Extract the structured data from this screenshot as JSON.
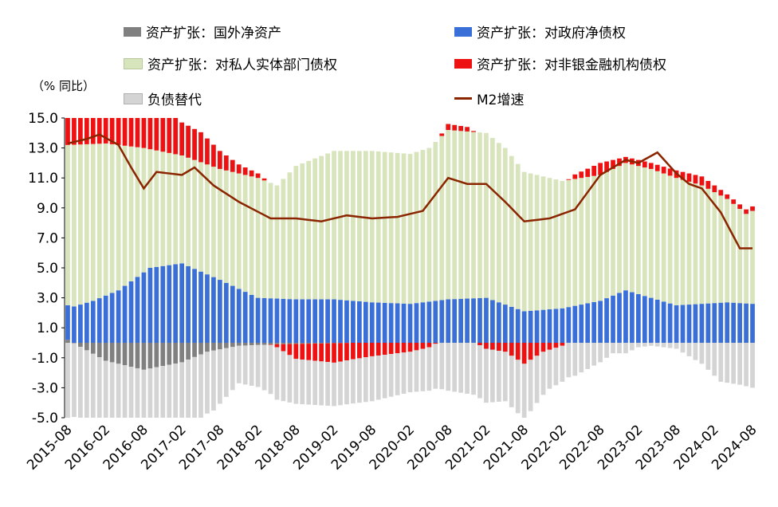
{
  "chart_data": {
    "type": "bar",
    "stacked": true,
    "unit_label": "（% 同比）",
    "yticks": [
      "15.0",
      "13.0",
      "11.0",
      "9.0",
      "7.0",
      "5.0",
      "3.0",
      "1.0",
      "-1.0",
      "-3.0",
      "-5.0"
    ],
    "ylim": [
      -5,
      15
    ],
    "grid": false,
    "xtick_labels": [
      "2015-08",
      "2016-02",
      "2016-08",
      "2017-02",
      "2017-08",
      "2018-02",
      "2018-08",
      "2019-02",
      "2019-08",
      "2020-02",
      "2020-08",
      "2021-02",
      "2021-08",
      "2022-02",
      "2022-08",
      "2023-02",
      "2023-08",
      "2024-02",
      "2024-08"
    ],
    "n_months": 109,
    "legend": [
      {
        "label": "资产扩张：国外净资产",
        "color": "#808080",
        "kind": "bar"
      },
      {
        "label": "资产扩张：对政府净债权",
        "color": "#3a6fd8",
        "kind": "bar"
      },
      {
        "label": "资产扩张：对私人实体部门债权",
        "color": "#d8e4bc",
        "kind": "bar"
      },
      {
        "label": "资产扩张：对非银金融机构债权",
        "color": "#ee1111",
        "kind": "bar"
      },
      {
        "label": "负债替代",
        "color": "#d4d4d4",
        "kind": "bar"
      },
      {
        "label": "M2增速",
        "color": "#8b2500",
        "kind": "line"
      }
    ],
    "anchors": {
      "foreign": [
        [
          0,
          0.2
        ],
        [
          6,
          -1.2
        ],
        [
          12,
          -1.8
        ],
        [
          18,
          -1.3
        ],
        [
          22,
          -0.6
        ],
        [
          27,
          -0.2
        ],
        [
          33,
          -0.1
        ],
        [
          45,
          0
        ],
        [
          108,
          0
        ]
      ],
      "gov": [
        [
          0,
          2.3
        ],
        [
          4,
          2.8
        ],
        [
          8,
          3.5
        ],
        [
          13,
          5.0
        ],
        [
          18,
          5.3
        ],
        [
          24,
          4.2
        ],
        [
          30,
          3.0
        ],
        [
          36,
          2.9
        ],
        [
          42,
          2.9
        ],
        [
          48,
          2.7
        ],
        [
          54,
          2.6
        ],
        [
          60,
          2.9
        ],
        [
          66,
          3.0
        ],
        [
          72,
          2.1
        ],
        [
          78,
          2.3
        ],
        [
          84,
          2.8
        ],
        [
          88,
          3.5
        ],
        [
          92,
          3.0
        ],
        [
          96,
          2.5
        ],
        [
          100,
          2.6
        ],
        [
          104,
          2.7
        ],
        [
          108,
          2.6
        ]
      ],
      "private": [
        [
          0,
          13.2
        ],
        [
          6,
          13.3
        ],
        [
          12,
          13.0
        ],
        [
          18,
          12.5
        ],
        [
          24,
          11.6
        ],
        [
          30,
          11.0
        ],
        [
          33,
          10.5
        ],
        [
          36,
          11.8
        ],
        [
          42,
          12.8
        ],
        [
          48,
          12.8
        ],
        [
          54,
          12.6
        ],
        [
          57,
          13.0
        ],
        [
          60,
          14.2
        ],
        [
          66,
          14.0
        ],
        [
          69,
          13.0
        ],
        [
          72,
          11.4
        ],
        [
          78,
          10.8
        ],
        [
          84,
          11.2
        ],
        [
          88,
          12.0
        ],
        [
          92,
          11.6
        ],
        [
          96,
          11.0
        ],
        [
          100,
          10.5
        ],
        [
          104,
          9.6
        ],
        [
          107,
          8.6
        ],
        [
          108,
          8.8
        ]
      ],
      "nonbank": [
        [
          0,
          2.0
        ],
        [
          6,
          2.5
        ],
        [
          12,
          2.8
        ],
        [
          15,
          3.0
        ],
        [
          18,
          2.2
        ],
        [
          21,
          2.0
        ],
        [
          24,
          1.2
        ],
        [
          27,
          0.6
        ],
        [
          30,
          0.3
        ],
        [
          33,
          -0.2
        ],
        [
          36,
          -1.0
        ],
        [
          42,
          -1.3
        ],
        [
          48,
          -0.9
        ],
        [
          54,
          -0.6
        ],
        [
          57,
          -0.3
        ],
        [
          60,
          0.4
        ],
        [
          63,
          0.3
        ],
        [
          66,
          -0.4
        ],
        [
          69,
          -0.6
        ],
        [
          72,
          -1.4
        ],
        [
          75,
          -0.6
        ],
        [
          78,
          -0.2
        ],
        [
          80,
          0.3
        ],
        [
          84,
          0.8
        ],
        [
          88,
          0.4
        ],
        [
          92,
          0.4
        ],
        [
          96,
          0.5
        ],
        [
          100,
          0.6
        ],
        [
          104,
          0.3
        ],
        [
          108,
          0.3
        ]
      ],
      "liability": [
        [
          0,
          -5.0
        ],
        [
          6,
          -4.5
        ],
        [
          12,
          -4.0
        ],
        [
          18,
          -4.6
        ],
        [
          23,
          -4.0
        ],
        [
          27,
          -2.5
        ],
        [
          30,
          -2.8
        ],
        [
          33,
          -3.5
        ],
        [
          36,
          -3.0
        ],
        [
          42,
          -2.9
        ],
        [
          48,
          -3.0
        ],
        [
          54,
          -2.7
        ],
        [
          57,
          -2.9
        ],
        [
          60,
          -3.2
        ],
        [
          66,
          -3.6
        ],
        [
          69,
          -3.3
        ],
        [
          72,
          -3.7
        ],
        [
          76,
          -2.6
        ],
        [
          80,
          -2.2
        ],
        [
          84,
          -1.3
        ],
        [
          86,
          -0.7
        ],
        [
          88,
          -0.7
        ],
        [
          90,
          -0.3
        ],
        [
          92,
          -0.2
        ],
        [
          96,
          -0.4
        ],
        [
          100,
          -1.4
        ],
        [
          103,
          -2.6
        ],
        [
          106,
          -2.8
        ],
        [
          108,
          -3.0
        ]
      ],
      "m2": [
        [
          0,
          13.3
        ],
        [
          3,
          13.6
        ],
        [
          5,
          13.9
        ],
        [
          8,
          13.2
        ],
        [
          10,
          11.7
        ],
        [
          12,
          10.3
        ],
        [
          14,
          11.4
        ],
        [
          18,
          11.2
        ],
        [
          20,
          11.7
        ],
        [
          23,
          10.5
        ],
        [
          27,
          9.4
        ],
        [
          32,
          8.3
        ],
        [
          36,
          8.3
        ],
        [
          40,
          8.1
        ],
        [
          44,
          8.5
        ],
        [
          48,
          8.3
        ],
        [
          52,
          8.4
        ],
        [
          56,
          8.8
        ],
        [
          60,
          11.0
        ],
        [
          63,
          10.6
        ],
        [
          66,
          10.6
        ],
        [
          69,
          9.4
        ],
        [
          72,
          8.1
        ],
        [
          76,
          8.3
        ],
        [
          80,
          8.9
        ],
        [
          84,
          11.2
        ],
        [
          88,
          12.2
        ],
        [
          90,
          12.0
        ],
        [
          93,
          12.7
        ],
        [
          96,
          11.3
        ],
        [
          98,
          10.6
        ],
        [
          100,
          10.3
        ],
        [
          103,
          8.7
        ],
        [
          106,
          6.3
        ],
        [
          108,
          6.3
        ]
      ]
    },
    "clip_top_months": [
      0,
      1,
      2,
      3,
      4,
      5,
      6,
      7,
      8,
      9,
      10,
      11,
      12,
      13,
      14,
      15,
      16,
      17,
      18,
      19,
      20,
      21,
      22,
      23,
      24,
      25,
      26,
      27,
      28,
      29,
      30,
      31,
      32,
      33
    ]
  }
}
